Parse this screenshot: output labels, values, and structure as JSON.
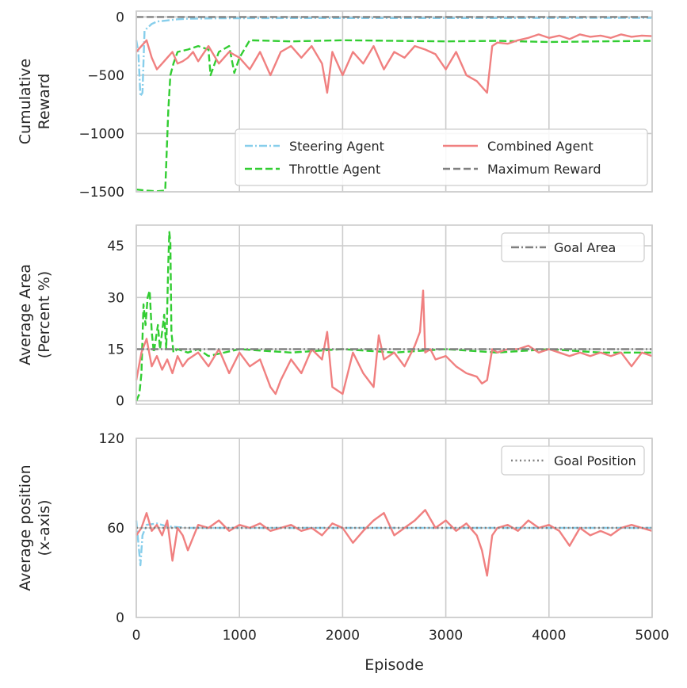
{
  "chart_data": [
    {
      "type": "line",
      "ylabel_lines": [
        "Cumulative",
        "Reward"
      ],
      "xlim": [
        0,
        5000
      ],
      "ylim": [
        -1500,
        50
      ],
      "yticks": [
        0,
        -500,
        -1000,
        -1500
      ],
      "ytick_labels": [
        "0",
        "−500",
        "−1000",
        "−1500"
      ],
      "legend_location": "lower-right",
      "legend_columns": 2,
      "series": [
        {
          "name": "Steering Agent",
          "style": "dashdot",
          "color": "#87ceeb",
          "x": [
            0,
            20,
            40,
            60,
            80,
            100,
            150,
            200,
            300,
            400,
            500,
            800,
            1500,
            2500,
            3500,
            4500,
            5000
          ],
          "y": [
            -200,
            -300,
            -680,
            -650,
            -120,
            -100,
            -60,
            -40,
            -30,
            -20,
            -15,
            -12,
            -10,
            -10,
            -10,
            -8,
            -8
          ]
        },
        {
          "name": "Throttle Agent",
          "style": "dashed",
          "color": "#32cd32",
          "x": [
            0,
            100,
            200,
            280,
            310,
            330,
            360,
            400,
            500,
            600,
            700,
            720,
            800,
            900,
            950,
            1000,
            1100,
            1500,
            2000,
            2500,
            3000,
            3500,
            4000,
            4500,
            5000
          ],
          "y": [
            -1480,
            -1490,
            -1495,
            -1490,
            -800,
            -500,
            -400,
            -300,
            -280,
            -250,
            -280,
            -500,
            -300,
            -250,
            -480,
            -350,
            -200,
            -210,
            -200,
            -205,
            -210,
            -205,
            -215,
            -210,
            -205
          ]
        },
        {
          "name": "Combined Agent",
          "style": "solid",
          "color": "#f08080",
          "x": [
            0,
            50,
            100,
            150,
            200,
            250,
            300,
            350,
            400,
            450,
            500,
            550,
            600,
            700,
            800,
            900,
            1000,
            1100,
            1200,
            1300,
            1400,
            1500,
            1600,
            1700,
            1800,
            1850,
            1900,
            2000,
            2100,
            2200,
            2300,
            2400,
            2500,
            2600,
            2700,
            2800,
            2900,
            3000,
            3100,
            3200,
            3300,
            3400,
            3450,
            3500,
            3600,
            3700,
            3800,
            3900,
            4000,
            4100,
            4200,
            4300,
            4400,
            4500,
            4600,
            4700,
            4800,
            4900,
            5000
          ],
          "y": [
            -300,
            -250,
            -200,
            -350,
            -450,
            -400,
            -350,
            -300,
            -400,
            -380,
            -350,
            -300,
            -380,
            -250,
            -400,
            -300,
            -350,
            -450,
            -300,
            -500,
            -300,
            -250,
            -350,
            -250,
            -400,
            -650,
            -300,
            -500,
            -300,
            -400,
            -250,
            -450,
            -300,
            -350,
            -250,
            -280,
            -320,
            -450,
            -300,
            -500,
            -550,
            -650,
            -250,
            -220,
            -230,
            -200,
            -180,
            -150,
            -180,
            -160,
            -190,
            -150,
            -170,
            -160,
            -180,
            -150,
            -170,
            -160,
            -165
          ]
        },
        {
          "name": "Maximum Reward",
          "style": "dashed",
          "color": "#808080",
          "x": [
            0,
            5000
          ],
          "y": [
            0,
            0
          ]
        }
      ]
    },
    {
      "type": "line",
      "ylabel_lines": [
        "Average Area",
        "(Percent %)"
      ],
      "xlim": [
        0,
        5000
      ],
      "ylim": [
        -1,
        51
      ],
      "yticks": [
        0,
        15,
        30,
        45
      ],
      "ytick_labels": [
        "0",
        "15",
        "30",
        "45"
      ],
      "legend_location": "top-right",
      "legend_columns": 1,
      "series": [
        {
          "name": "Throttle Agent",
          "style": "dashed",
          "color": "#32cd32",
          "in_legend": false,
          "x": [
            0,
            30,
            50,
            70,
            90,
            110,
            130,
            150,
            170,
            190,
            210,
            230,
            250,
            270,
            290,
            310,
            320,
            330,
            340,
            360,
            400,
            500,
            600,
            700,
            1000,
            1500,
            2000,
            2500,
            3000,
            3500,
            4000,
            4500,
            5000
          ],
          "y": [
            0,
            2,
            8,
            28,
            22,
            30,
            32,
            20,
            14,
            18,
            22,
            15,
            20,
            25,
            15,
            40,
            49,
            46,
            20,
            14,
            15,
            14,
            15,
            13,
            15,
            14,
            15,
            14,
            15,
            14,
            15,
            14,
            14
          ]
        },
        {
          "name": "Combined Agent",
          "style": "solid",
          "color": "#f08080",
          "in_legend": false,
          "x": [
            0,
            50,
            100,
            150,
            200,
            250,
            300,
            350,
            400,
            450,
            500,
            600,
            700,
            800,
            900,
            1000,
            1100,
            1200,
            1300,
            1350,
            1400,
            1500,
            1600,
            1700,
            1800,
            1850,
            1900,
            2000,
            2100,
            2200,
            2300,
            2350,
            2400,
            2500,
            2600,
            2700,
            2750,
            2780,
            2800,
            2850,
            2900,
            3000,
            3100,
            3200,
            3300,
            3350,
            3400,
            3450,
            3500,
            3600,
            3700,
            3800,
            3900,
            4000,
            4100,
            4200,
            4300,
            4400,
            4500,
            4600,
            4700,
            4800,
            4900,
            5000
          ],
          "y": [
            6,
            14,
            18,
            10,
            13,
            9,
            12,
            8,
            13,
            10,
            12,
            14,
            10,
            15,
            8,
            14,
            10,
            12,
            4,
            2,
            6,
            12,
            8,
            15,
            12,
            20,
            4,
            2,
            14,
            8,
            4,
            19,
            12,
            14,
            10,
            16,
            20,
            32,
            14,
            15,
            12,
            13,
            10,
            8,
            7,
            5,
            6,
            15,
            14,
            15,
            15,
            16,
            14,
            15,
            14,
            13,
            14,
            13,
            14,
            13,
            14,
            10,
            14,
            13
          ]
        },
        {
          "name": "Goal Area",
          "style": "dashdot",
          "color": "#808080",
          "in_legend": true,
          "x": [
            0,
            5000
          ],
          "y": [
            15,
            15
          ]
        }
      ]
    },
    {
      "type": "line",
      "ylabel_lines": [
        "Average position",
        "(x-axis)"
      ],
      "xlabel": "Episode",
      "xlim": [
        0,
        5000
      ],
      "ylim": [
        0,
        120
      ],
      "yticks": [
        0,
        60,
        120
      ],
      "ytick_labels": [
        "0",
        "60",
        "120"
      ],
      "xticks": [
        0,
        1000,
        2000,
        3000,
        4000,
        5000
      ],
      "xtick_labels": [
        "0",
        "1000",
        "2000",
        "3000",
        "4000",
        "5000"
      ],
      "legend_location": "top-right",
      "legend_columns": 1,
      "series": [
        {
          "name": "Steering Agent",
          "style": "dashdot",
          "color": "#87ceeb",
          "in_legend": false,
          "x": [
            0,
            20,
            40,
            60,
            100,
            200,
            300,
            500,
            1000,
            2000,
            3000,
            4000,
            5000
          ],
          "y": [
            65,
            50,
            35,
            55,
            62,
            63,
            61,
            60,
            60,
            60,
            60,
            60,
            60
          ]
        },
        {
          "name": "Combined Agent",
          "style": "solid",
          "color": "#f08080",
          "in_legend": false,
          "x": [
            0,
            50,
            100,
            150,
            200,
            250,
            300,
            350,
            400,
            450,
            500,
            600,
            700,
            800,
            900,
            1000,
            1100,
            1200,
            1300,
            1400,
            1500,
            1600,
            1700,
            1800,
            1900,
            2000,
            2100,
            2200,
            2300,
            2400,
            2500,
            2600,
            2700,
            2800,
            2900,
            3000,
            3100,
            3200,
            3300,
            3350,
            3400,
            3450,
            3500,
            3600,
            3700,
            3800,
            3900,
            4000,
            4100,
            4200,
            4300,
            4400,
            4500,
            4600,
            4700,
            4800,
            4900,
            5000
          ],
          "y": [
            55,
            60,
            70,
            58,
            62,
            55,
            65,
            38,
            60,
            55,
            45,
            62,
            60,
            65,
            58,
            62,
            60,
            63,
            58,
            60,
            62,
            58,
            60,
            55,
            63,
            60,
            50,
            58,
            65,
            70,
            55,
            60,
            65,
            72,
            60,
            65,
            58,
            63,
            55,
            45,
            28,
            55,
            60,
            62,
            58,
            65,
            60,
            62,
            58,
            48,
            60,
            55,
            58,
            55,
            60,
            62,
            60,
            58
          ]
        },
        {
          "name": "Goal Position",
          "style": "dotted",
          "color": "#808080",
          "in_legend": true,
          "x": [
            0,
            5000
          ],
          "y": [
            60,
            60
          ]
        }
      ]
    }
  ]
}
